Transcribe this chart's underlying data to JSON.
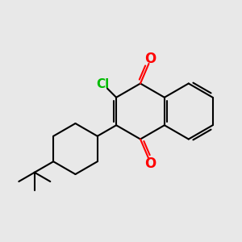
{
  "bg_color": "#e8e8e8",
  "bond_color": "#000000",
  "o_color": "#ff0000",
  "cl_color": "#00bb00",
  "bond_width": 1.5,
  "figsize": [
    3.0,
    3.0
  ],
  "dpi": 100,
  "xlim": [
    0,
    10
  ],
  "ylim": [
    0,
    10
  ]
}
